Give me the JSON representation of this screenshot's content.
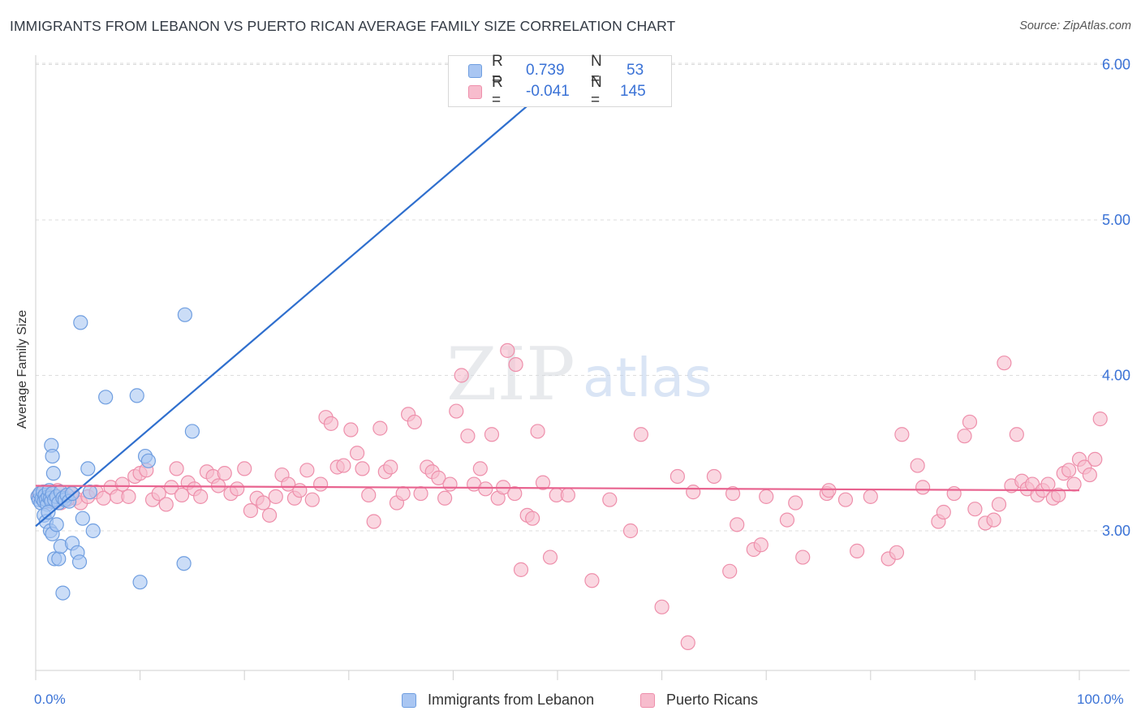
{
  "title": "IMMIGRANTS FROM LEBANON VS PUERTO RICAN AVERAGE FAMILY SIZE CORRELATION CHART",
  "source": "Source: ZipAtlas.com",
  "watermark": {
    "zip": "ZIP",
    "atlas": "atlas"
  },
  "legend_top": {
    "rows": [
      {
        "r_label": "R =",
        "r_value": "0.739",
        "n_label": "N =",
        "n_value": "53"
      },
      {
        "r_label": "R =",
        "r_value": "-0.041",
        "n_label": "N =",
        "n_value": "145"
      }
    ]
  },
  "colors": {
    "blue_fill": "#a9c6f2",
    "blue_stroke": "#6f9ee0",
    "blue_line": "#2f6fce",
    "pink_fill": "#f7bccd",
    "pink_stroke": "#ee8fab",
    "pink_line": "#e8638f",
    "axis_text": "#3a72d6",
    "grid": "#dddddd"
  },
  "chart_data": {
    "type": "scatter",
    "title": "IMMIGRANTS FROM LEBANON VS PUERTO RICAN AVERAGE FAMILY SIZE CORRELATION CHART",
    "xlabel": "",
    "ylabel": "Average Family Size",
    "xlim": [
      0,
      100
    ],
    "ylim": [
      2.0,
      6.1
    ],
    "x_tick_labels": [
      "0.0%",
      "100.0%"
    ],
    "y_ticks": [
      3.0,
      4.0,
      5.0,
      6.0
    ],
    "y_tick_labels": [
      "3.00",
      "4.00",
      "5.00",
      "6.00"
    ],
    "grid": "horizontal dashed",
    "legend_position": "bottom",
    "series": [
      {
        "name": "Immigrants from Lebanon",
        "color": "#a9c6f2",
        "trend": {
          "x": [
            0,
            50
          ],
          "y": [
            3.03,
            5.9
          ]
        },
        "points": [
          [
            0.2,
            3.22
          ],
          [
            0.3,
            3.2
          ],
          [
            0.4,
            3.24
          ],
          [
            0.5,
            3.18
          ],
          [
            0.6,
            3.21
          ],
          [
            0.7,
            3.25
          ],
          [
            0.8,
            3.19
          ],
          [
            0.9,
            3.23
          ],
          [
            1.0,
            3.2
          ],
          [
            1.1,
            3.17
          ],
          [
            1.2,
            3.22
          ],
          [
            1.3,
            3.26
          ],
          [
            1.4,
            3.21
          ],
          [
            1.5,
            3.19
          ],
          [
            1.6,
            3.24
          ],
          [
            1.8,
            3.2
          ],
          [
            2.0,
            3.22
          ],
          [
            2.2,
            3.18
          ],
          [
            2.4,
            3.25
          ],
          [
            2.6,
            3.21
          ],
          [
            2.8,
            3.2
          ],
          [
            3.0,
            3.23
          ],
          [
            3.2,
            3.19
          ],
          [
            3.5,
            3.24
          ],
          [
            0.8,
            3.1
          ],
          [
            1.0,
            3.06
          ],
          [
            1.2,
            3.12
          ],
          [
            1.4,
            3.0
          ],
          [
            1.6,
            2.98
          ],
          [
            1.8,
            2.82
          ],
          [
            2.0,
            3.04
          ],
          [
            2.2,
            2.82
          ],
          [
            2.4,
            2.9
          ],
          [
            2.6,
            2.6
          ],
          [
            3.5,
            2.92
          ],
          [
            4.0,
            2.86
          ],
          [
            4.2,
            2.8
          ],
          [
            4.5,
            3.08
          ],
          [
            5.5,
            3.0
          ],
          [
            1.5,
            3.55
          ],
          [
            1.6,
            3.48
          ],
          [
            1.7,
            3.37
          ],
          [
            4.3,
            4.34
          ],
          [
            5.0,
            3.4
          ],
          [
            5.2,
            3.25
          ],
          [
            6.7,
            3.86
          ],
          [
            9.7,
            3.87
          ],
          [
            10.0,
            2.67
          ],
          [
            10.5,
            3.48
          ],
          [
            10.8,
            3.45
          ],
          [
            14.3,
            4.39
          ],
          [
            15.0,
            3.64
          ],
          [
            14.2,
            2.79
          ]
        ]
      },
      {
        "name": "Puerto Ricans",
        "color": "#f7bccd",
        "trend": {
          "x": [
            0,
            100
          ],
          "y": [
            3.29,
            3.26
          ]
        },
        "points": [
          [
            0.3,
            3.23
          ],
          [
            0.6,
            3.21
          ],
          [
            0.9,
            3.25
          ],
          [
            1.2,
            3.19
          ],
          [
            1.5,
            3.22
          ],
          [
            1.8,
            3.2
          ],
          [
            2.1,
            3.26
          ],
          [
            2.4,
            3.18
          ],
          [
            2.7,
            3.22
          ],
          [
            3.0,
            3.2
          ],
          [
            3.4,
            3.24
          ],
          [
            3.8,
            3.21
          ],
          [
            4.3,
            3.18
          ],
          [
            5.0,
            3.22
          ],
          [
            5.8,
            3.25
          ],
          [
            6.5,
            3.21
          ],
          [
            7.2,
            3.28
          ],
          [
            7.8,
            3.22
          ],
          [
            8.3,
            3.3
          ],
          [
            8.9,
            3.22
          ],
          [
            9.5,
            3.35
          ],
          [
            10.0,
            3.37
          ],
          [
            10.6,
            3.39
          ],
          [
            11.2,
            3.2
          ],
          [
            11.8,
            3.24
          ],
          [
            12.5,
            3.17
          ],
          [
            13.0,
            3.28
          ],
          [
            13.5,
            3.4
          ],
          [
            14.0,
            3.23
          ],
          [
            14.6,
            3.31
          ],
          [
            15.2,
            3.27
          ],
          [
            15.8,
            3.22
          ],
          [
            16.4,
            3.38
          ],
          [
            17.0,
            3.35
          ],
          [
            17.5,
            3.29
          ],
          [
            18.1,
            3.37
          ],
          [
            18.7,
            3.24
          ],
          [
            19.3,
            3.27
          ],
          [
            20.0,
            3.4
          ],
          [
            20.6,
            3.13
          ],
          [
            21.2,
            3.21
          ],
          [
            21.8,
            3.18
          ],
          [
            22.4,
            3.1
          ],
          [
            23.0,
            3.22
          ],
          [
            23.6,
            3.36
          ],
          [
            24.2,
            3.3
          ],
          [
            24.8,
            3.21
          ],
          [
            25.3,
            3.26
          ],
          [
            26.0,
            3.39
          ],
          [
            26.5,
            3.2
          ],
          [
            27.3,
            3.3
          ],
          [
            27.8,
            3.73
          ],
          [
            28.3,
            3.69
          ],
          [
            28.9,
            3.41
          ],
          [
            29.5,
            3.42
          ],
          [
            30.2,
            3.65
          ],
          [
            30.8,
            3.5
          ],
          [
            31.3,
            3.4
          ],
          [
            31.9,
            3.23
          ],
          [
            32.4,
            3.06
          ],
          [
            33.0,
            3.66
          ],
          [
            33.5,
            3.38
          ],
          [
            34.0,
            3.41
          ],
          [
            34.6,
            3.18
          ],
          [
            35.2,
            3.24
          ],
          [
            35.7,
            3.75
          ],
          [
            36.3,
            3.7
          ],
          [
            36.9,
            3.24
          ],
          [
            37.5,
            3.41
          ],
          [
            38.0,
            3.38
          ],
          [
            38.6,
            3.34
          ],
          [
            39.2,
            3.21
          ],
          [
            39.7,
            3.3
          ],
          [
            40.3,
            3.77
          ],
          [
            40.8,
            4.0
          ],
          [
            41.4,
            3.61
          ],
          [
            42.0,
            3.3
          ],
          [
            42.6,
            3.4
          ],
          [
            43.1,
            3.27
          ],
          [
            43.7,
            3.62
          ],
          [
            44.3,
            3.21
          ],
          [
            44.8,
            3.28
          ],
          [
            45.2,
            4.16
          ],
          [
            46.0,
            4.07
          ],
          [
            46.5,
            2.75
          ],
          [
            47.1,
            3.1
          ],
          [
            47.6,
            3.08
          ],
          [
            48.1,
            3.64
          ],
          [
            48.6,
            3.31
          ],
          [
            49.3,
            2.83
          ],
          [
            49.9,
            3.23
          ],
          [
            51.0,
            3.23
          ],
          [
            53.3,
            2.68
          ],
          [
            57.0,
            3.0
          ],
          [
            58.0,
            3.62
          ],
          [
            60.0,
            2.51
          ],
          [
            61.5,
            3.35
          ],
          [
            62.5,
            2.28
          ],
          [
            65.0,
            3.35
          ],
          [
            66.5,
            2.74
          ],
          [
            66.8,
            3.24
          ],
          [
            67.2,
            3.04
          ],
          [
            68.8,
            2.88
          ],
          [
            69.5,
            2.91
          ],
          [
            72.0,
            3.07
          ],
          [
            72.8,
            3.18
          ],
          [
            73.5,
            2.83
          ],
          [
            75.8,
            3.24
          ],
          [
            77.6,
            3.2
          ],
          [
            78.7,
            2.87
          ],
          [
            81.7,
            2.82
          ],
          [
            82.5,
            2.86
          ],
          [
            83.0,
            3.62
          ],
          [
            84.5,
            3.42
          ],
          [
            85.0,
            3.28
          ],
          [
            86.5,
            3.06
          ],
          [
            87.0,
            3.12
          ],
          [
            88.0,
            3.24
          ],
          [
            89.0,
            3.61
          ],
          [
            89.5,
            3.7
          ],
          [
            90.0,
            3.14
          ],
          [
            91.0,
            3.05
          ],
          [
            91.8,
            3.07
          ],
          [
            92.3,
            3.17
          ],
          [
            92.8,
            4.08
          ],
          [
            93.5,
            3.29
          ],
          [
            94.0,
            3.62
          ],
          [
            94.5,
            3.32
          ],
          [
            95.0,
            3.27
          ],
          [
            95.5,
            3.3
          ],
          [
            96.0,
            3.23
          ],
          [
            96.5,
            3.26
          ],
          [
            97.0,
            3.3
          ],
          [
            97.5,
            3.21
          ],
          [
            98.0,
            3.23
          ],
          [
            98.5,
            3.37
          ],
          [
            99.0,
            3.39
          ],
          [
            99.5,
            3.3
          ],
          [
            100.0,
            3.46
          ],
          [
            100.5,
            3.41
          ],
          [
            101.0,
            3.36
          ],
          [
            101.5,
            3.46
          ],
          [
            102.0,
            3.72
          ],
          [
            45.9,
            3.24
          ],
          [
            55.0,
            3.2
          ],
          [
            63.0,
            3.25
          ],
          [
            70.0,
            3.22
          ],
          [
            76.0,
            3.26
          ],
          [
            80.0,
            3.22
          ]
        ]
      }
    ]
  },
  "bottom_legend": [
    {
      "label": "Immigrants from Lebanon"
    },
    {
      "label": "Puerto Ricans"
    }
  ]
}
